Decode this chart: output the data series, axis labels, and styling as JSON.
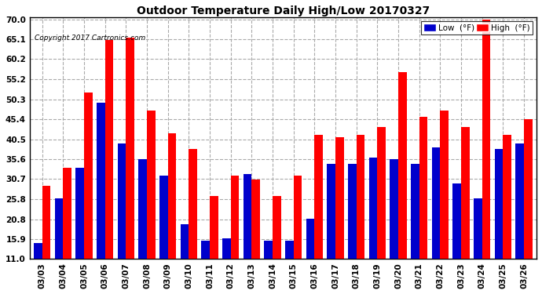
{
  "title": "Outdoor Temperature Daily High/Low 20170327",
  "copyright": "Copyright 2017 Cartronics.com",
  "dates": [
    "03/03",
    "03/04",
    "03/05",
    "03/06",
    "03/07",
    "03/08",
    "03/09",
    "03/10",
    "03/11",
    "03/12",
    "03/13",
    "03/14",
    "03/15",
    "03/16",
    "03/17",
    "03/18",
    "03/19",
    "03/20",
    "03/21",
    "03/22",
    "03/23",
    "03/24",
    "03/25",
    "03/26"
  ],
  "high": [
    29.0,
    33.5,
    52.0,
    65.0,
    65.5,
    47.5,
    42.0,
    38.0,
    26.5,
    31.5,
    30.5,
    26.5,
    31.5,
    41.5,
    41.0,
    41.5,
    43.5,
    57.0,
    46.0,
    47.5,
    43.5,
    70.0,
    41.5,
    45.5
  ],
  "low": [
    15.0,
    26.0,
    33.5,
    49.5,
    39.5,
    35.5,
    31.5,
    19.5,
    15.5,
    16.0,
    32.0,
    15.5,
    15.5,
    21.0,
    34.5,
    34.5,
    36.0,
    35.5,
    34.5,
    38.5,
    29.5,
    26.0,
    38.0,
    39.5
  ],
  "high_color": "#ff0000",
  "low_color": "#0000cc",
  "bg_color": "#ffffff",
  "plot_bg": "#ffffff",
  "grid_color": "#aaaaaa",
  "yticks": [
    11.0,
    15.9,
    20.8,
    25.8,
    30.7,
    35.6,
    40.5,
    45.4,
    50.3,
    55.2,
    60.2,
    65.1,
    70.0
  ],
  "ylim_min": 11.0,
  "ylim_max": 70.5,
  "legend_low_label": "Low  (°F)",
  "legend_high_label": "High  (°F)",
  "bar_bottom": 11.0
}
